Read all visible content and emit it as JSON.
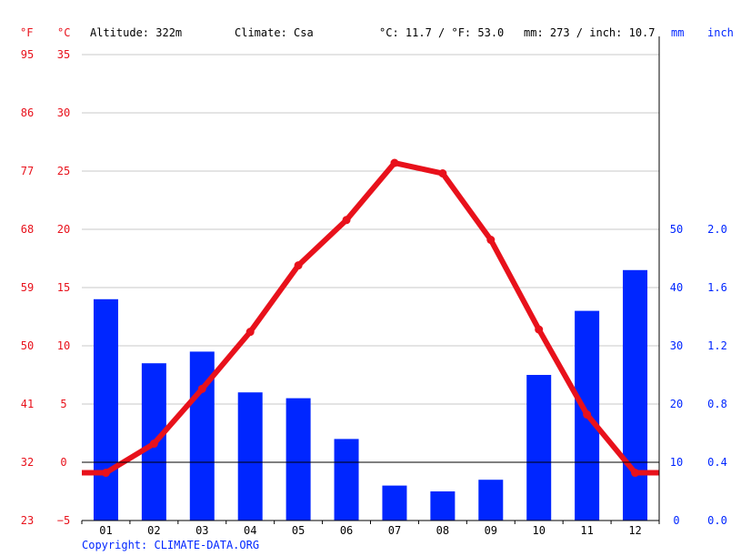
{
  "header": {
    "fahrenheit_unit": "°F",
    "celsius_unit": "°C",
    "altitude": "Altitude: 322m",
    "climate": "Climate: Csa",
    "avg_temp": "°C: 11.7 / °F: 53.0",
    "precip_total": "mm: 273 / inch: 10.7",
    "mm_unit": "mm",
    "inch_unit": "inch"
  },
  "copyright": "Copyright: CLIMATE-DATA.ORG",
  "colors": {
    "temperature": "#e8111b",
    "precipitation": "#0026ff",
    "axis": "#000000",
    "grid": "#c8c8c8"
  },
  "chart_data": {
    "type": "bar",
    "categories": [
      "01",
      "02",
      "03",
      "04",
      "05",
      "06",
      "07",
      "08",
      "09",
      "10",
      "11",
      "12"
    ],
    "series": [
      {
        "type": "bar",
        "axis": "right",
        "unit": "mm",
        "values": [
          38,
          27,
          29,
          22,
          21,
          14,
          6,
          5,
          7,
          25,
          36,
          43
        ]
      },
      {
        "type": "line",
        "axis": "left",
        "unit": "°C",
        "values": [
          -0.9,
          1.6,
          6.3,
          11.2,
          16.9,
          20.8,
          25.7,
          24.8,
          19.1,
          11.4,
          4.1,
          -0.9
        ]
      }
    ],
    "left_axis": {
      "celsius_ticks": [
        "35",
        "30",
        "25",
        "20",
        "15",
        "10",
        "5",
        "0",
        "−5"
      ],
      "fahrenheit_ticks": [
        "95",
        "86",
        "77",
        "68",
        "59",
        "50",
        "41",
        "32",
        "23"
      ],
      "ylim_celsius": [
        -5,
        35
      ]
    },
    "right_axis": {
      "mm_ticks": [
        "50",
        "40",
        "30",
        "20",
        "10",
        "0"
      ],
      "inch_ticks": [
        "2.0",
        "1.6",
        "1.2",
        "0.8",
        "0.4",
        "0.0"
      ],
      "ylim_mm": [
        0,
        80
      ]
    },
    "grid": true
  }
}
